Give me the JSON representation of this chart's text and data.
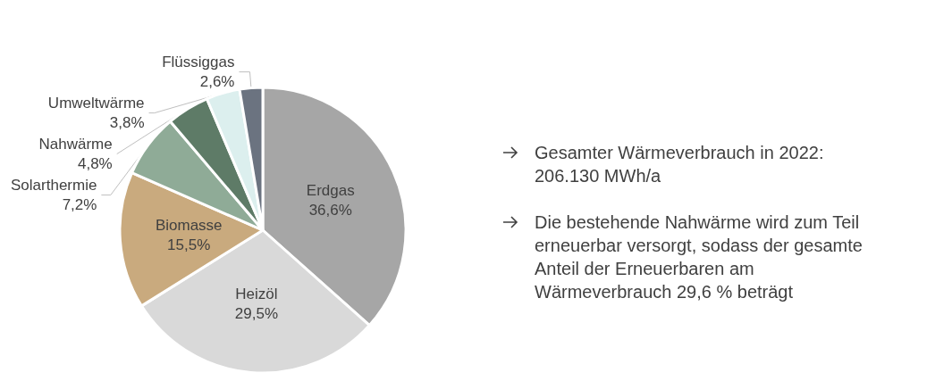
{
  "chart_data": {
    "type": "pie",
    "categories": [
      "Erdgas",
      "Heizöl",
      "Biomasse",
      "Solarthermie",
      "Nahwärme",
      "Umweltwärme",
      "Flüssiggas"
    ],
    "values": [
      36.6,
      29.5,
      15.5,
      7.2,
      4.8,
      3.8,
      2.6
    ],
    "colors": [
      "#a6a6a6",
      "#d9d9d9",
      "#c9aa7e",
      "#8fab97",
      "#5e7b67",
      "#dcefee",
      "#6b7380"
    ],
    "value_labels": [
      "36,6%",
      "29,5%",
      "15,5%",
      "7,2%",
      "4,8%",
      "3,8%",
      "2,6%"
    ],
    "legend": false,
    "annotations": [
      "Gesamter Wärmeverbrauch in 2022:\n206.130 MWh/a",
      "Die bestehende Nahwärme wird zum Teil\nerneuerbar versorgt, sodass der gesamte\nAnteil der Erneuerbaren am\nWärmeverbrauch 29,6 % beträgt"
    ]
  }
}
